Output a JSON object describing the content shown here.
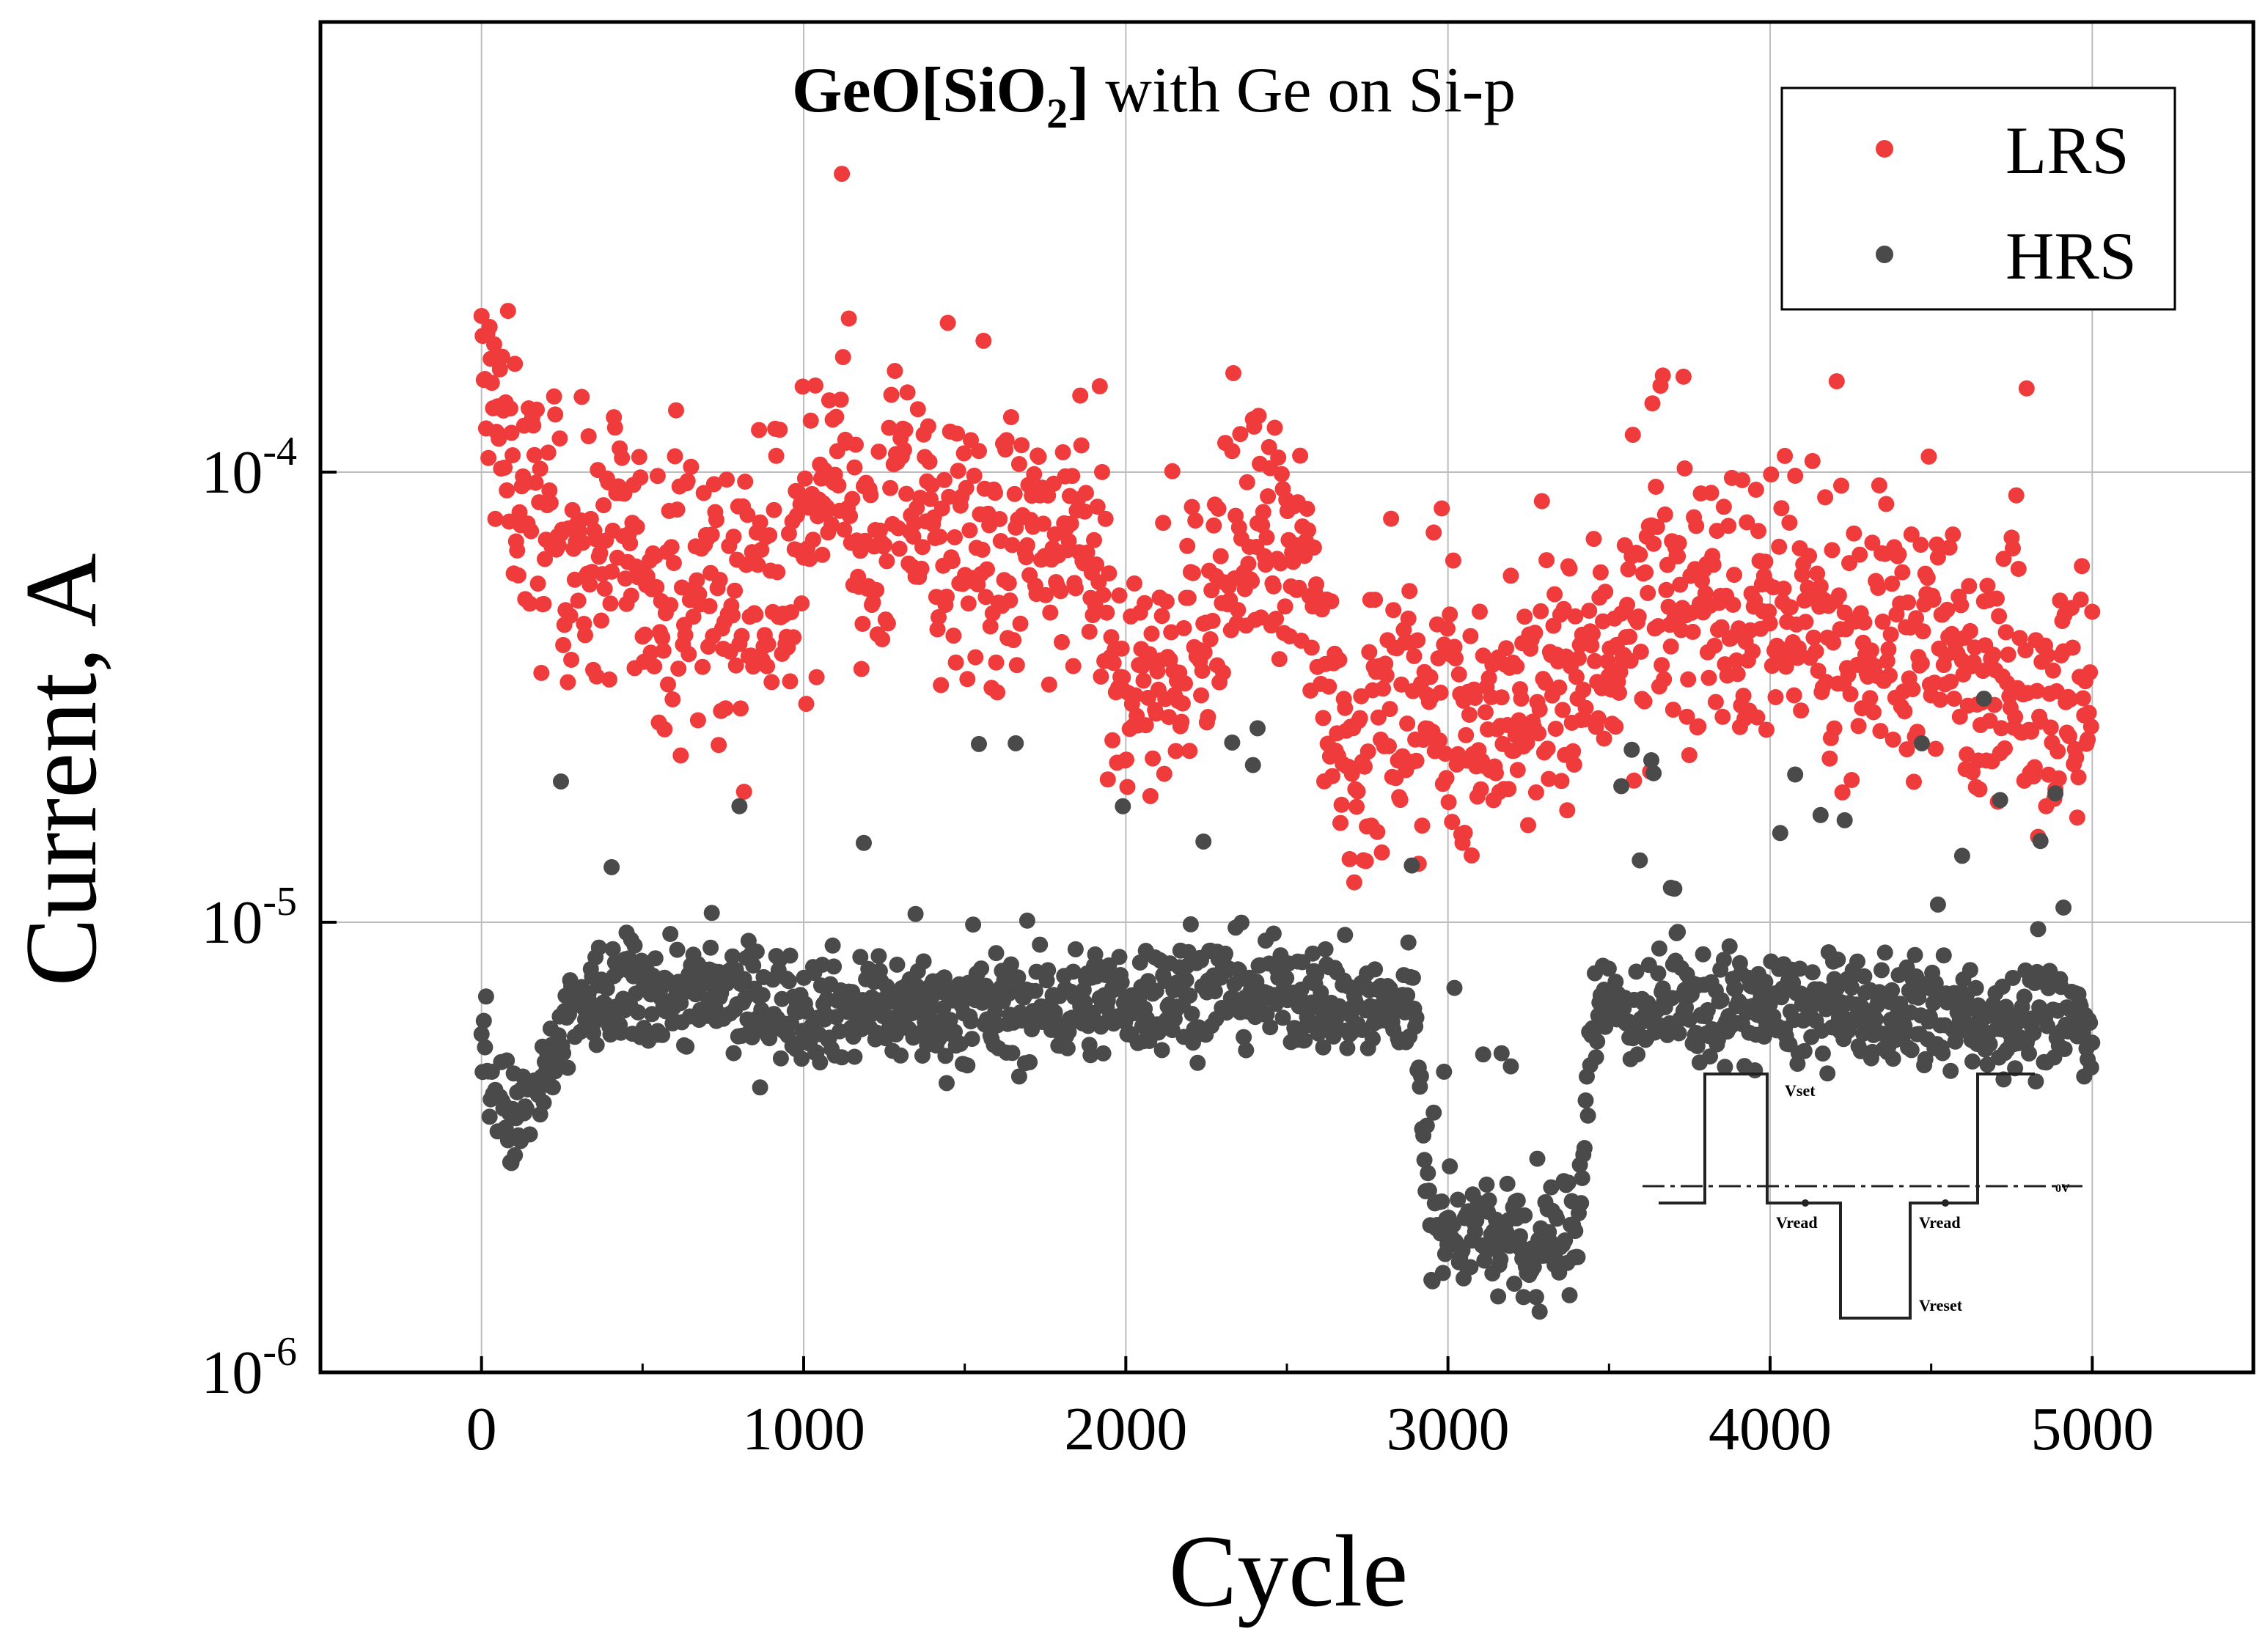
{
  "chart_data": {
    "type": "scatter",
    "title_bold": "GeO[SiO",
    "title_sub": "2",
    "title_bold_end": "]",
    "title_rest": " with Ge on Si-p",
    "xlabel": "Cycle",
    "ylabel": "Current, A",
    "x_range": [
      -500,
      5500
    ],
    "y_scale": "log",
    "y_range": [
      1e-06,
      0.001
    ],
    "x_ticks": [
      0,
      1000,
      2000,
      3000,
      4000,
      5000
    ],
    "x_tick_labels": [
      "0",
      "1000",
      "2000",
      "3000",
      "4000",
      "5000"
    ],
    "y_ticks": [
      1e-06,
      1e-05,
      0.0001
    ],
    "y_tick_labels": [
      {
        "base": "10",
        "exp": "-6"
      },
      {
        "base": "10",
        "exp": "-5"
      },
      {
        "base": "10",
        "exp": "-4"
      }
    ],
    "grid": true,
    "legend_position": "top-right",
    "series": [
      {
        "name": "LRS",
        "color": "#ef3b3b",
        "n_points": 5000,
        "trend": [
          {
            "x": 0,
            "y": 0.00016
          },
          {
            "x": 100,
            "y": 0.0001
          },
          {
            "x": 200,
            "y": 7e-05
          },
          {
            "x": 400,
            "y": 6.5e-05
          },
          {
            "x": 600,
            "y": 5.5e-05
          },
          {
            "x": 800,
            "y": 5e-05
          },
          {
            "x": 1000,
            "y": 6e-05
          },
          {
            "x": 1100,
            "y": 0.00013
          },
          {
            "x": 1200,
            "y": 6e-05
          },
          {
            "x": 1300,
            "y": 9e-05
          },
          {
            "x": 1450,
            "y": 6.5e-05
          },
          {
            "x": 1700,
            "y": 6.5e-05
          },
          {
            "x": 1900,
            "y": 6.5e-05
          },
          {
            "x": 1950,
            "y": 3.2e-05
          },
          {
            "x": 2100,
            "y": 3.5e-05
          },
          {
            "x": 2400,
            "y": 7e-05
          },
          {
            "x": 2550,
            "y": 6e-05
          },
          {
            "x": 2700,
            "y": 2.3e-05
          },
          {
            "x": 2900,
            "y": 3e-05
          },
          {
            "x": 3200,
            "y": 2.8e-05
          },
          {
            "x": 3400,
            "y": 3.5e-05
          },
          {
            "x": 3700,
            "y": 5.5e-05
          },
          {
            "x": 4000,
            "y": 4.5e-05
          },
          {
            "x": 4300,
            "y": 4.5e-05
          },
          {
            "x": 4700,
            "y": 3.8e-05
          },
          {
            "x": 5000,
            "y": 2.8e-05
          }
        ],
        "spread_decades": 0.14
      },
      {
        "name": "HRS",
        "color": "#4a4a4a",
        "n_points": 5000,
        "trend": [
          {
            "x": 0,
            "y": 5e-06
          },
          {
            "x": 100,
            "y": 3.5e-06
          },
          {
            "x": 200,
            "y": 4.5e-06
          },
          {
            "x": 300,
            "y": 6.5e-06
          },
          {
            "x": 450,
            "y": 7e-06
          },
          {
            "x": 600,
            "y": 7e-06
          },
          {
            "x": 1000,
            "y": 6.5e-06
          },
          {
            "x": 1500,
            "y": 6.3e-06
          },
          {
            "x": 2000,
            "y": 6.7e-06
          },
          {
            "x": 2300,
            "y": 7.2e-06
          },
          {
            "x": 2600,
            "y": 6.8e-06
          },
          {
            "x": 2900,
            "y": 6.2e-06
          },
          {
            "x": 2950,
            "y": 2e-06
          },
          {
            "x": 3100,
            "y": 2.1e-06
          },
          {
            "x": 3250,
            "y": 1.8e-06
          },
          {
            "x": 3400,
            "y": 2.1e-06
          },
          {
            "x": 3450,
            "y": 6.5e-06
          },
          {
            "x": 4000,
            "y": 6.4e-06
          },
          {
            "x": 4500,
            "y": 6.2e-06
          },
          {
            "x": 5000,
            "y": 6e-06
          }
        ],
        "spread_decades": 0.06
      }
    ],
    "inset": {
      "description": "pulse waveform",
      "labels": [
        "Vset",
        "0V",
        "Vread",
        "Vread",
        "Vreset"
      ]
    }
  }
}
